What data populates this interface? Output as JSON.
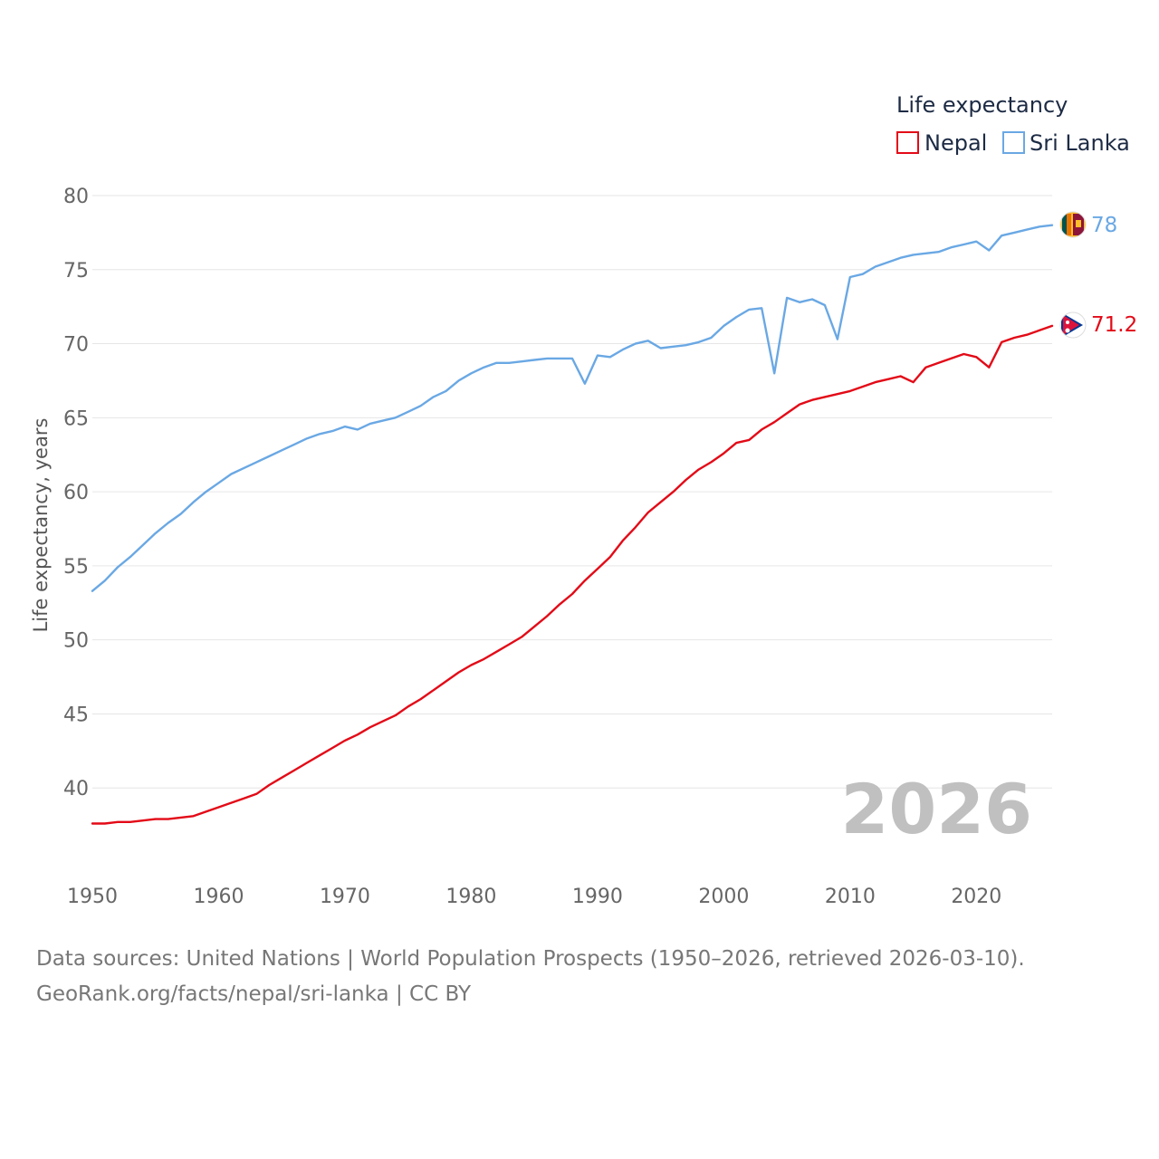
{
  "chart_data": {
    "type": "line",
    "title": "",
    "legend_title": "Life expectancy",
    "legend_position": "top-right",
    "xlabel": "",
    "ylabel": "Life expectancy, years",
    "xlim": [
      1950,
      2026
    ],
    "ylim": [
      35,
      80
    ],
    "x_ticks": [
      1950,
      1960,
      1970,
      1980,
      1990,
      2000,
      2010,
      2020
    ],
    "y_ticks": [
      40,
      45,
      50,
      55,
      60,
      65,
      70,
      75,
      80
    ],
    "grid": "horizontal",
    "year_label": "2026",
    "series": [
      {
        "name": "Nepal",
        "color": "#e30a17",
        "end_label": "71.2",
        "flag_icon": "nepal-flag-icon",
        "points": [
          [
            1950,
            37.6
          ],
          [
            1951,
            37.6
          ],
          [
            1952,
            37.7
          ],
          [
            1953,
            37.7
          ],
          [
            1954,
            37.8
          ],
          [
            1955,
            37.9
          ],
          [
            1956,
            37.9
          ],
          [
            1957,
            38.0
          ],
          [
            1958,
            38.1
          ],
          [
            1959,
            38.4
          ],
          [
            1960,
            38.7
          ],
          [
            1961,
            39.0
          ],
          [
            1962,
            39.3
          ],
          [
            1963,
            39.6
          ],
          [
            1964,
            40.2
          ],
          [
            1965,
            40.7
          ],
          [
            1966,
            41.2
          ],
          [
            1967,
            41.7
          ],
          [
            1968,
            42.2
          ],
          [
            1969,
            42.7
          ],
          [
            1970,
            43.2
          ],
          [
            1971,
            43.6
          ],
          [
            1972,
            44.1
          ],
          [
            1973,
            44.5
          ],
          [
            1974,
            44.9
          ],
          [
            1975,
            45.5
          ],
          [
            1976,
            46.0
          ],
          [
            1977,
            46.6
          ],
          [
            1978,
            47.2
          ],
          [
            1979,
            47.8
          ],
          [
            1980,
            48.3
          ],
          [
            1981,
            48.7
          ],
          [
            1982,
            49.2
          ],
          [
            1983,
            49.7
          ],
          [
            1984,
            50.2
          ],
          [
            1985,
            50.9
          ],
          [
            1986,
            51.6
          ],
          [
            1987,
            52.4
          ],
          [
            1988,
            53.1
          ],
          [
            1989,
            54.0
          ],
          [
            1990,
            54.8
          ],
          [
            1991,
            55.6
          ],
          [
            1992,
            56.7
          ],
          [
            1993,
            57.6
          ],
          [
            1994,
            58.6
          ],
          [
            1995,
            59.3
          ],
          [
            1996,
            60.0
          ],
          [
            1997,
            60.8
          ],
          [
            1998,
            61.5
          ],
          [
            1999,
            62.0
          ],
          [
            2000,
            62.6
          ],
          [
            2001,
            63.3
          ],
          [
            2002,
            63.5
          ],
          [
            2003,
            64.2
          ],
          [
            2004,
            64.7
          ],
          [
            2005,
            65.3
          ],
          [
            2006,
            65.9
          ],
          [
            2007,
            66.2
          ],
          [
            2008,
            66.4
          ],
          [
            2009,
            66.6
          ],
          [
            2010,
            66.8
          ],
          [
            2011,
            67.1
          ],
          [
            2012,
            67.4
          ],
          [
            2013,
            67.6
          ],
          [
            2014,
            67.8
          ],
          [
            2015,
            67.4
          ],
          [
            2016,
            68.4
          ],
          [
            2017,
            68.7
          ],
          [
            2018,
            69.0
          ],
          [
            2019,
            69.3
          ],
          [
            2020,
            69.1
          ],
          [
            2021,
            68.4
          ],
          [
            2022,
            70.1
          ],
          [
            2023,
            70.4
          ],
          [
            2024,
            70.6
          ],
          [
            2025,
            70.9
          ],
          [
            2026,
            71.2
          ]
        ]
      },
      {
        "name": "Sri Lanka",
        "color": "#6aa8e4",
        "end_label": "78",
        "flag_icon": "sri-lanka-flag-icon",
        "points": [
          [
            1950,
            53.3
          ],
          [
            1951,
            54.0
          ],
          [
            1952,
            54.9
          ],
          [
            1953,
            55.6
          ],
          [
            1954,
            56.4
          ],
          [
            1955,
            57.2
          ],
          [
            1956,
            57.9
          ],
          [
            1957,
            58.5
          ],
          [
            1958,
            59.3
          ],
          [
            1959,
            60.0
          ],
          [
            1960,
            60.6
          ],
          [
            1961,
            61.2
          ],
          [
            1962,
            61.6
          ],
          [
            1963,
            62.0
          ],
          [
            1964,
            62.4
          ],
          [
            1965,
            62.8
          ],
          [
            1966,
            63.2
          ],
          [
            1967,
            63.6
          ],
          [
            1968,
            63.9
          ],
          [
            1969,
            64.1
          ],
          [
            1970,
            64.4
          ],
          [
            1971,
            64.2
          ],
          [
            1972,
            64.6
          ],
          [
            1973,
            64.8
          ],
          [
            1974,
            65.0
          ],
          [
            1975,
            65.4
          ],
          [
            1976,
            65.8
          ],
          [
            1977,
            66.4
          ],
          [
            1978,
            66.8
          ],
          [
            1979,
            67.5
          ],
          [
            1980,
            68.0
          ],
          [
            1981,
            68.4
          ],
          [
            1982,
            68.7
          ],
          [
            1983,
            68.7
          ],
          [
            1984,
            68.8
          ],
          [
            1985,
            68.9
          ],
          [
            1986,
            69.0
          ],
          [
            1987,
            69.0
          ],
          [
            1988,
            69.0
          ],
          [
            1989,
            67.3
          ],
          [
            1990,
            69.2
          ],
          [
            1991,
            69.1
          ],
          [
            1992,
            69.6
          ],
          [
            1993,
            70.0
          ],
          [
            1994,
            70.2
          ],
          [
            1995,
            69.7
          ],
          [
            1996,
            69.8
          ],
          [
            1997,
            69.9
          ],
          [
            1998,
            70.1
          ],
          [
            1999,
            70.4
          ],
          [
            2000,
            71.2
          ],
          [
            2001,
            71.8
          ],
          [
            2002,
            72.3
          ],
          [
            2003,
            72.4
          ],
          [
            2004,
            68.0
          ],
          [
            2005,
            73.1
          ],
          [
            2006,
            72.8
          ],
          [
            2007,
            73.0
          ],
          [
            2008,
            72.6
          ],
          [
            2009,
            70.3
          ],
          [
            2010,
            74.5
          ],
          [
            2011,
            74.7
          ],
          [
            2012,
            75.2
          ],
          [
            2013,
            75.5
          ],
          [
            2014,
            75.8
          ],
          [
            2015,
            76.0
          ],
          [
            2016,
            76.1
          ],
          [
            2017,
            76.2
          ],
          [
            2018,
            76.5
          ],
          [
            2019,
            76.7
          ],
          [
            2020,
            76.9
          ],
          [
            2021,
            76.3
          ],
          [
            2022,
            77.3
          ],
          [
            2023,
            77.5
          ],
          [
            2024,
            77.7
          ],
          [
            2025,
            77.9
          ],
          [
            2026,
            78.0
          ]
        ]
      }
    ]
  },
  "source": {
    "line1": "Data sources: United Nations | World Population Prospects (1950–2026, retrieved 2026-03-10).",
    "line2": "GeoRank.org/facts/nepal/sri-lanka | CC BY"
  }
}
